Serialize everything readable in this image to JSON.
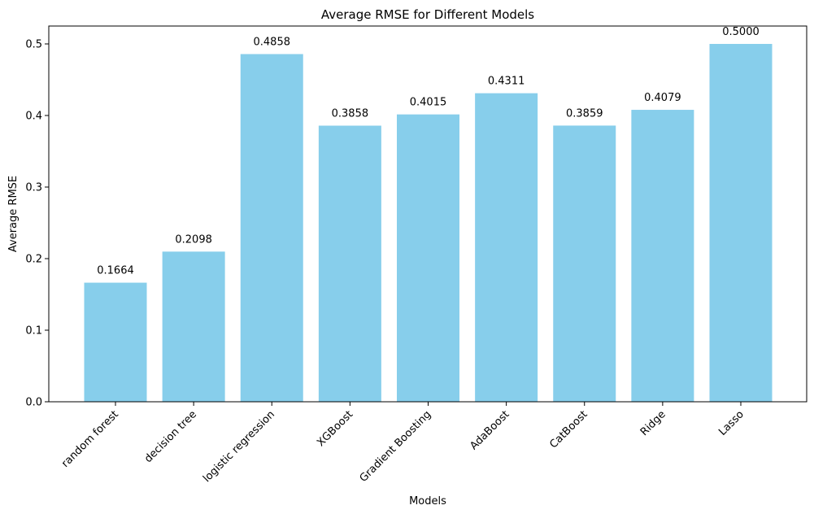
{
  "chart_data": {
    "type": "bar",
    "title": "Average RMSE for Different Models",
    "xlabel": "Models",
    "ylabel": "Average RMSE",
    "categories": [
      "random forest",
      "decision tree",
      "logistic regression",
      "XGBoost",
      "Gradient Boosting",
      "AdaBoost",
      "CatBoost",
      "Ridge",
      "Lasso"
    ],
    "values": [
      0.1664,
      0.2098,
      0.4858,
      0.3858,
      0.4015,
      0.4311,
      0.3859,
      0.4079,
      0.5
    ],
    "data_labels": [
      "0.1664",
      "0.2098",
      "0.4858",
      "0.3858",
      "0.4015",
      "0.4311",
      "0.3859",
      "0.4079",
      "0.5000"
    ],
    "ylim": [
      0,
      0.525
    ],
    "yticks": [
      0.0,
      0.1,
      0.2,
      0.3,
      0.4,
      0.5
    ],
    "ytick_labels": [
      "0.0",
      "0.1",
      "0.2",
      "0.3",
      "0.4",
      "0.5"
    ],
    "bar_color": "#87ceeb",
    "grid": false,
    "legend": "none"
  }
}
